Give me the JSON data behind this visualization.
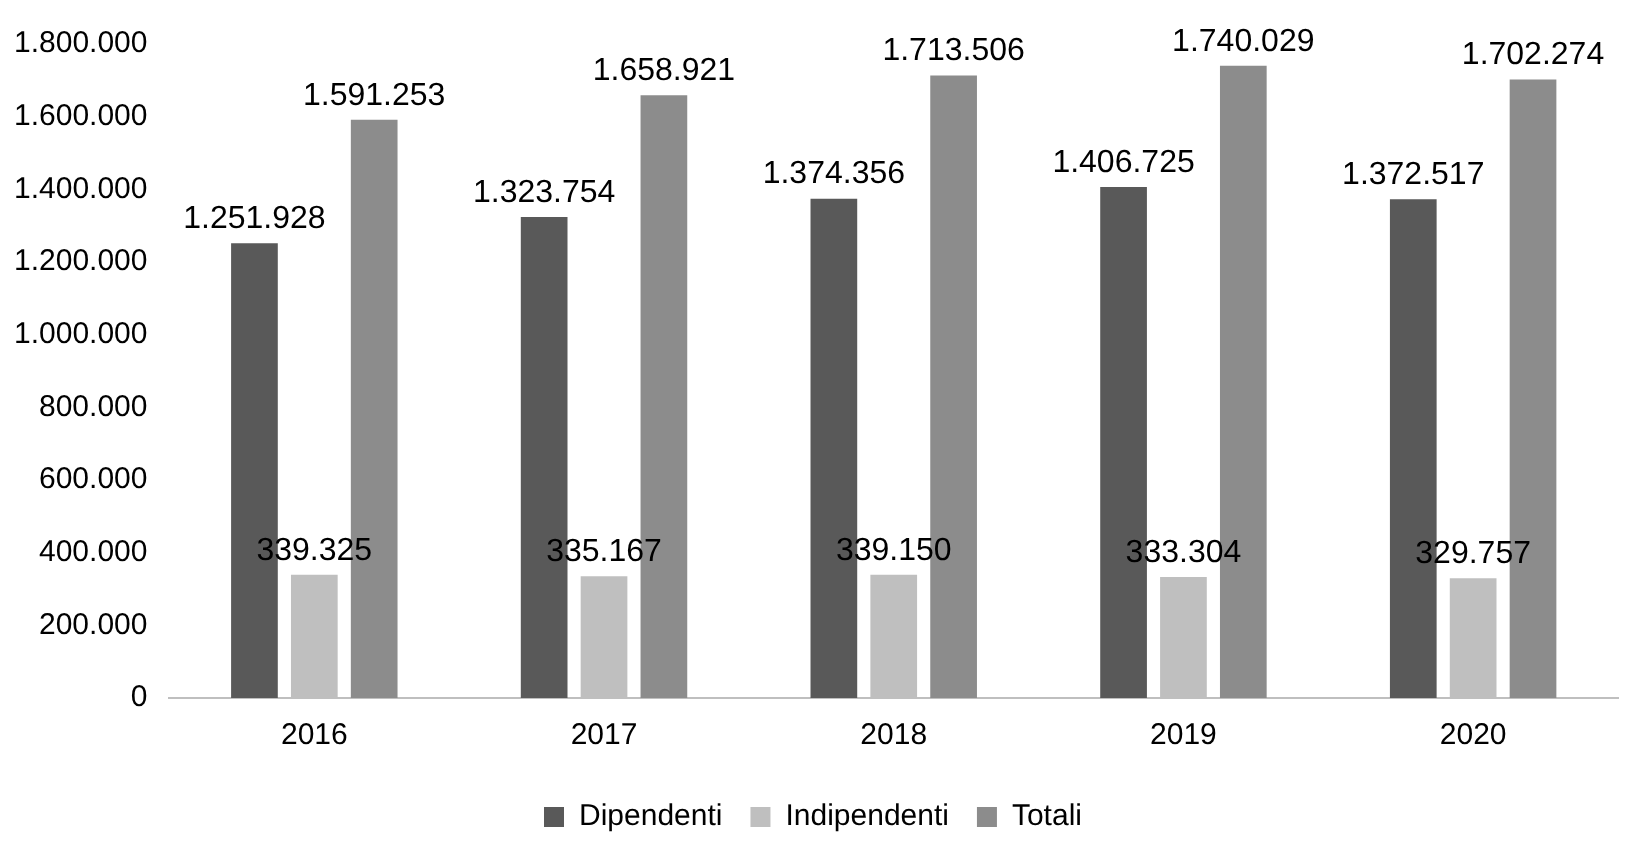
{
  "chart_data": {
    "type": "bar",
    "categories": [
      "2016",
      "2017",
      "2018",
      "2019",
      "2020"
    ],
    "series": [
      {
        "name": "Dipendenti",
        "color": "#595959",
        "values": [
          1251928,
          1323754,
          1374356,
          1406725,
          1372517
        ],
        "value_labels": [
          "1.251.928",
          "1.323.754",
          "1.374.356",
          "1.406.725",
          "1.372.517"
        ]
      },
      {
        "name": "Indipendenti",
        "color": "#bfbfbf",
        "values": [
          339325,
          335167,
          339150,
          333304,
          329757
        ],
        "value_labels": [
          "339.325",
          "335.167",
          "339.150",
          "333.304",
          "329.757"
        ]
      },
      {
        "name": "Totali",
        "color": "#8c8c8c",
        "values": [
          1591253,
          1658921,
          1713506,
          1740029,
          1702274
        ],
        "value_labels": [
          "1.591.253",
          "1.658.921",
          "1.713.506",
          "1.740.029",
          "1.702.274"
        ]
      }
    ],
    "ylim": [
      0,
      1800000
    ],
    "yticks": [
      {
        "value": 0,
        "label": "0"
      },
      {
        "value": 200000,
        "label": "200.000"
      },
      {
        "value": 400000,
        "label": "400.000"
      },
      {
        "value": 600000,
        "label": "600.000"
      },
      {
        "value": 800000,
        "label": "800.000"
      },
      {
        "value": 1000000,
        "label": "1.000.000"
      },
      {
        "value": 1200000,
        "label": "1.200.000"
      },
      {
        "value": 1400000,
        "label": "1.400.000"
      },
      {
        "value": 1600000,
        "label": "1.600.000"
      },
      {
        "value": 1800000,
        "label": "1.800.000"
      }
    ],
    "grid": false,
    "legend": "bottom"
  }
}
